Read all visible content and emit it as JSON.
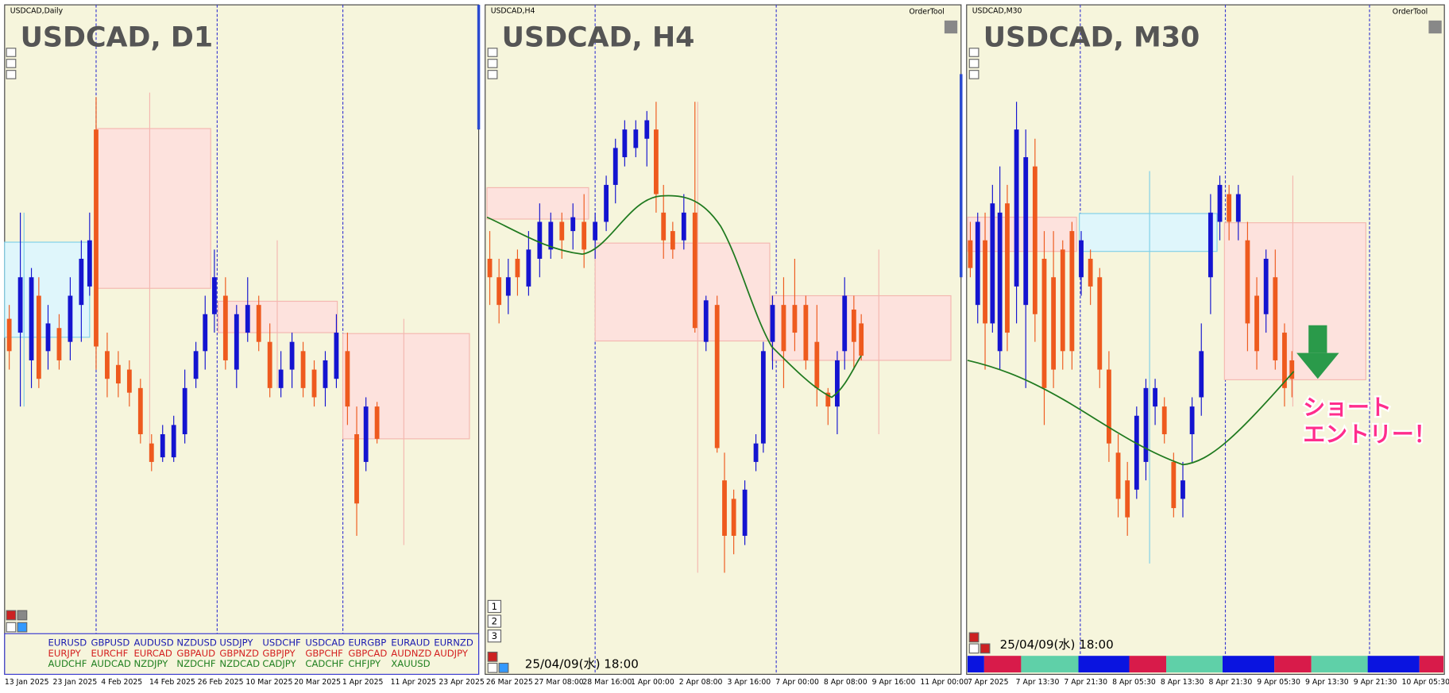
{
  "panels": [
    {
      "header": "USDCAD,Daily",
      "title": "USDCAD, D1",
      "time_labels": [
        "13 Jan 2025",
        "23 Jan 2025",
        "4 Feb 2025",
        "14 Feb 2025",
        "26 Feb 2025",
        "10 Mar 2025",
        "20 Mar 2025",
        "1 Apr 2025",
        "11 Apr 2025",
        "23 Apr 2025"
      ],
      "pairs": [
        [
          "EURUSD",
          "GBPUSD",
          "AUDUSD",
          "NZDUSD",
          "USDJPY",
          "USDCHF",
          "USDCAD",
          "EURGBP",
          "EURAUD",
          "EURNZD"
        ],
        [
          "EURJPY",
          "EURCHF",
          "EURCAD",
          "GBPAUD",
          "GBPNZD",
          "GBPJPY",
          "GBPCHF",
          "GBPCAD",
          "AUDNZD",
          "AUDJPY"
        ],
        [
          "AUDCHF",
          "AUDCAD",
          "NZDJPY",
          "NZDCHF",
          "NZDCAD",
          "CADJPY",
          "CADCHF",
          "CHFJPY",
          "XAUUSD"
        ]
      ]
    },
    {
      "header": "USDCAD,H4",
      "order_tool": "OrderTool",
      "title": "USDCAD, H4",
      "timestamp": "25/04/09(水) 18:00",
      "buttons": [
        "1",
        "2",
        "3"
      ],
      "time_labels": [
        "26 Mar 2025",
        "27 Mar 08:00",
        "28 Mar 16:00",
        "1 Apr 00:00",
        "2 Apr 08:00",
        "3 Apr 16:00",
        "7 Apr 00:00",
        "8 Apr 08:00",
        "9 Apr 16:00",
        "11 Apr 00:00"
      ]
    },
    {
      "header": "USDCAD,M30",
      "order_tool": "OrderTool",
      "title": "USDCAD, M30",
      "timestamp": "25/04/09(水) 18:00",
      "annotation": [
        "ショート",
        "エントリー！"
      ],
      "time_labels": [
        "7 Apr 2025",
        "7 Apr 13:30",
        "7 Apr 21:30",
        "8 Apr 05:30",
        "8 Apr 13:30",
        "8 Apr 21:30",
        "9 Apr 05:30",
        "9 Apr 13:30",
        "9 Apr 21:30",
        "10 Apr 05:30"
      ]
    }
  ]
}
